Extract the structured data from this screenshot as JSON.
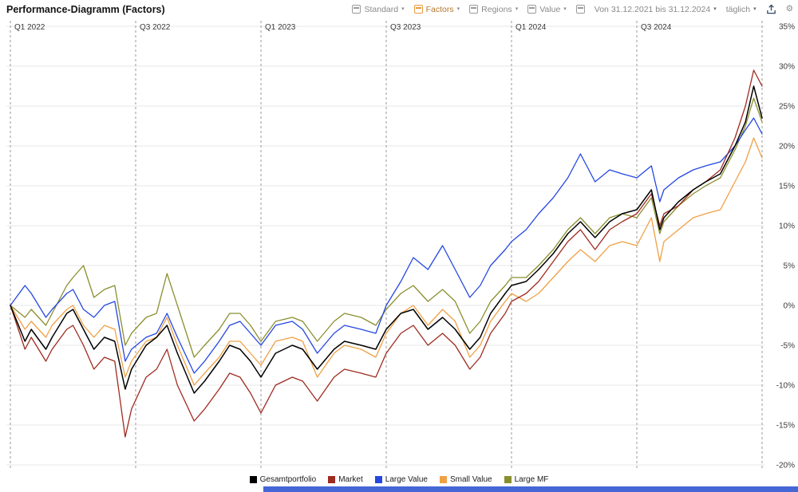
{
  "header": {
    "title": "Performance-Diagramm (Factors)",
    "configs": [
      {
        "label": "Standard",
        "active": false
      },
      {
        "label": "Factors",
        "active": true
      },
      {
        "label": "Regions",
        "active": false
      },
      {
        "label": "Value",
        "active": false
      }
    ],
    "date_range": "Von 31.12.2021 bis 31.12.2024",
    "interval": "täglich",
    "accent_orange": "#e89b3c",
    "gear_blue": "#4377bb"
  },
  "chart_data": {
    "type": "line",
    "title": "Performance-Diagramm (Factors)",
    "x_unit": "months_since_2021-12-31",
    "ylim": [
      -22,
      36
    ],
    "grid": true,
    "legend_position": "bottom",
    "y_tick_suffix": "%",
    "y_ticks": [
      35,
      30,
      25,
      20,
      15,
      10,
      5,
      0,
      -5,
      -10,
      -15,
      -20
    ],
    "x_gridlines": [
      {
        "label": "Q1 2022",
        "month": 0
      },
      {
        "label": "Q3 2022",
        "month": 6
      },
      {
        "label": "Q1 2023",
        "month": 12
      },
      {
        "label": "Q3 2023",
        "month": 18
      },
      {
        "label": "Q1 2024",
        "month": 24
      },
      {
        "label": "Q3 2024",
        "month": 30
      },
      {
        "label": "",
        "month": 36
      }
    ],
    "x": [
      0,
      0.7,
      1,
      1.7,
      2,
      2.7,
      3,
      3.5,
      4,
      4.5,
      5,
      5.5,
      5.8,
      6.5,
      7,
      7.5,
      8,
      8.8,
      9.3,
      10,
      10.5,
      11,
      11.5,
      12,
      12.7,
      13.5,
      14,
      14.7,
      15.5,
      16,
      16.8,
      17.5,
      18,
      18.7,
      19.3,
      20,
      20.7,
      21.3,
      22,
      22.5,
      23,
      23.7,
      24,
      24.7,
      25.3,
      26,
      26.7,
      27.3,
      28,
      28.7,
      29.3,
      30,
      30.7,
      31.1,
      31.3,
      32,
      32.7,
      33.3,
      34,
      34.7,
      35.2,
      35.6,
      36
    ],
    "series": [
      {
        "name": "Gesamtportfolio",
        "color": "#000000",
        "values": [
          0,
          -4.5,
          -3,
          -5.5,
          -4,
          -1,
          -0.5,
          -3,
          -5.5,
          -4,
          -4.5,
          -10.5,
          -8,
          -5,
          -4,
          -2.5,
          -6,
          -11,
          -9.5,
          -7,
          -5,
          -5.5,
          -7,
          -9,
          -6,
          -5,
          -5.5,
          -8,
          -5.5,
          -4.5,
          -5,
          -5.5,
          -3,
          -1,
          -0.5,
          -3,
          -1.5,
          -3,
          -5.5,
          -4,
          -1,
          1.5,
          2.5,
          3,
          4.5,
          6.5,
          9,
          10.5,
          8.5,
          10.5,
          11.5,
          12,
          14.5,
          9.5,
          11,
          13,
          14.5,
          15.5,
          16.5,
          20,
          23,
          27.5,
          23.5
        ]
      },
      {
        "name": "Market",
        "color": "#9e2b20",
        "values": [
          0,
          -5.5,
          -4,
          -7,
          -5.5,
          -3,
          -2.5,
          -5,
          -8,
          -6.5,
          -7,
          -16.5,
          -13,
          -9,
          -8,
          -5.5,
          -10,
          -14.5,
          -13,
          -10.5,
          -8.5,
          -9,
          -11,
          -13.5,
          -10,
          -9,
          -9.5,
          -12,
          -9,
          -8,
          -8.5,
          -9,
          -6,
          -3.5,
          -2.5,
          -5,
          -3.5,
          -5,
          -8,
          -6.5,
          -3.5,
          -1,
          0.5,
          1.5,
          3,
          5.5,
          8,
          9.5,
          7,
          9.5,
          10.5,
          11.5,
          14,
          10,
          11.5,
          12.5,
          14.5,
          15.5,
          17,
          21,
          25,
          29.5,
          27.5
        ]
      },
      {
        "name": "Large Value",
        "color": "#2447e2",
        "values": [
          0,
          2.5,
          1.5,
          -1.5,
          -0.5,
          1.5,
          2,
          -0.5,
          -1.5,
          0,
          0.5,
          -7,
          -5.5,
          -4,
          -3.5,
          -1,
          -4,
          -8.5,
          -7,
          -4.5,
          -2.5,
          -2,
          -3.5,
          -5,
          -2.5,
          -2,
          -3,
          -6,
          -3.5,
          -2.5,
          -3,
          -3.5,
          0,
          3,
          6,
          4.5,
          7.5,
          4.5,
          1,
          2.5,
          5,
          7,
          8,
          9.5,
          11.5,
          13.5,
          16,
          19,
          15.5,
          17,
          16.5,
          16,
          17.5,
          13,
          14.5,
          16,
          17,
          17.5,
          18,
          20,
          22,
          23.5,
          21.5
        ]
      },
      {
        "name": "Small Value",
        "color": "#f0a045",
        "values": [
          0,
          -3,
          -2,
          -4,
          -2.5,
          -0.5,
          0,
          -2.5,
          -4,
          -2.5,
          -3,
          -9,
          -7,
          -4.5,
          -4,
          -1.5,
          -5,
          -10,
          -8.5,
          -6.5,
          -4.5,
          -4.5,
          -6,
          -7.5,
          -4.5,
          -4,
          -4.5,
          -9,
          -6,
          -5,
          -5.5,
          -6.5,
          -3.5,
          -1,
          0,
          -2.5,
          -0.5,
          -2,
          -6.5,
          -5,
          -2,
          0.5,
          1.5,
          0.5,
          1.5,
          3.5,
          5.5,
          7,
          5.5,
          7.5,
          8,
          7.5,
          11,
          5.5,
          8,
          9.5,
          11,
          11.5,
          12,
          15.5,
          18,
          21,
          18.5
        ]
      },
      {
        "name": "Large MF",
        "color": "#8a8f2e",
        "values": [
          0,
          -1.5,
          -0.5,
          -2.5,
          -1,
          2.5,
          3.5,
          5,
          1,
          2,
          2.5,
          -5,
          -3.5,
          -1.5,
          -1,
          4,
          0,
          -6.5,
          -5,
          -3,
          -1,
          -1,
          -2.5,
          -4.5,
          -2,
          -1.5,
          -2,
          -4.5,
          -2,
          -1,
          -1.5,
          -2.5,
          -0.5,
          1.5,
          2.5,
          0.5,
          2,
          0.5,
          -3.5,
          -2,
          0.5,
          2.5,
          3.5,
          3.5,
          5,
          7,
          9.5,
          11,
          9,
          11,
          11.5,
          11,
          13.5,
          9,
          10.5,
          12.5,
          14,
          15,
          16,
          19.5,
          22.5,
          26,
          23
        ]
      }
    ]
  }
}
